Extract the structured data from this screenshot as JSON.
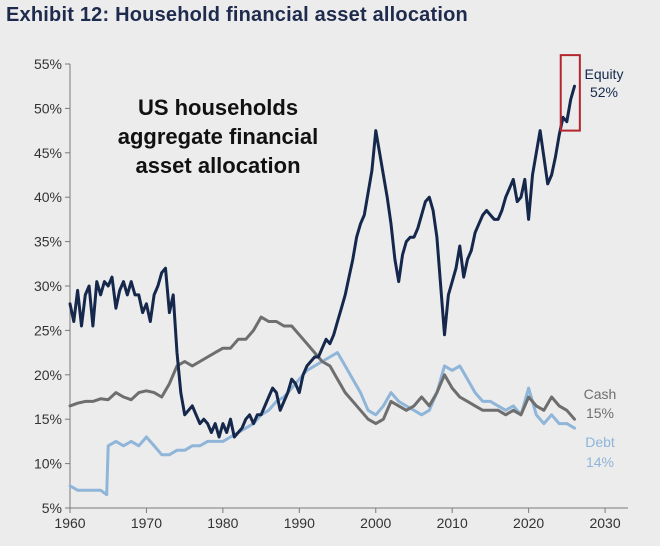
{
  "chart_data": {
    "type": "line",
    "title": "Exhibit 12: Household financial asset allocation",
    "inset_title": [
      "US households",
      "aggregate financial",
      "asset allocation"
    ],
    "xlabel": "",
    "ylabel": "",
    "xlim": [
      1960,
      2033
    ],
    "ylim": [
      5,
      55
    ],
    "x_ticks": [
      1960,
      1970,
      1980,
      1990,
      2000,
      2010,
      2020,
      2030
    ],
    "y_ticks": [
      5,
      10,
      15,
      20,
      25,
      30,
      35,
      40,
      45,
      50,
      55
    ],
    "y_tick_labels": [
      "5%",
      "10%",
      "15%",
      "20%",
      "25%",
      "30%",
      "35%",
      "40%",
      "45%",
      "50%",
      "55%"
    ],
    "grid": false,
    "highlight_box": {
      "x_range": [
        2024.2,
        2026.7
      ],
      "y_range": [
        47.5,
        56
      ],
      "color": "#b3262d"
    },
    "series": [
      {
        "name": "Equity",
        "end_label": "52%",
        "color": "#15284c",
        "points": [
          [
            1960,
            28
          ],
          [
            1960.5,
            26
          ],
          [
            1961,
            29.5
          ],
          [
            1961.5,
            25.5
          ],
          [
            1962,
            29
          ],
          [
            1962.5,
            30
          ],
          [
            1963,
            25.5
          ],
          [
            1963.5,
            30.5
          ],
          [
            1964,
            29
          ],
          [
            1964.5,
            30.5
          ],
          [
            1965,
            30
          ],
          [
            1965.5,
            31
          ],
          [
            1966,
            27.5
          ],
          [
            1966.5,
            29.5
          ],
          [
            1967,
            30.5
          ],
          [
            1967.5,
            29
          ],
          [
            1968,
            30.5
          ],
          [
            1968.5,
            29
          ],
          [
            1969,
            29
          ],
          [
            1969.5,
            27
          ],
          [
            1970,
            28
          ],
          [
            1970.5,
            26
          ],
          [
            1971,
            29
          ],
          [
            1971.5,
            30
          ],
          [
            1972,
            31.5
          ],
          [
            1972.5,
            32
          ],
          [
            1973,
            27
          ],
          [
            1973.5,
            29
          ],
          [
            1974,
            22.5
          ],
          [
            1974.5,
            18
          ],
          [
            1975,
            15.5
          ],
          [
            1975.5,
            16
          ],
          [
            1976,
            16.5
          ],
          [
            1976.5,
            15.5
          ],
          [
            1977,
            14.5
          ],
          [
            1977.5,
            15
          ],
          [
            1978,
            14.5
          ],
          [
            1978.5,
            13.5
          ],
          [
            1979,
            14.5
          ],
          [
            1979.5,
            13
          ],
          [
            1980,
            14.5
          ],
          [
            1980.5,
            13.5
          ],
          [
            1981,
            15
          ],
          [
            1981.5,
            13
          ],
          [
            1982,
            13.5
          ],
          [
            1982.5,
            14
          ],
          [
            1983,
            15
          ],
          [
            1983.5,
            15.5
          ],
          [
            1984,
            14.5
          ],
          [
            1984.5,
            15.5
          ],
          [
            1985,
            15.5
          ],
          [
            1985.5,
            16.5
          ],
          [
            1986,
            17.5
          ],
          [
            1986.5,
            18.5
          ],
          [
            1987,
            18
          ],
          [
            1987.5,
            16
          ],
          [
            1988,
            17
          ],
          [
            1988.5,
            18
          ],
          [
            1989,
            19.5
          ],
          [
            1989.5,
            19
          ],
          [
            1990,
            18
          ],
          [
            1990.5,
            20
          ],
          [
            1991,
            21
          ],
          [
            1991.5,
            21.5
          ],
          [
            1992,
            22
          ],
          [
            1992.5,
            22
          ],
          [
            1993,
            23
          ],
          [
            1993.5,
            24
          ],
          [
            1994,
            23.5
          ],
          [
            1994.5,
            24.5
          ],
          [
            1995,
            26
          ],
          [
            1995.5,
            27.5
          ],
          [
            1996,
            29
          ],
          [
            1996.5,
            31
          ],
          [
            1997,
            33
          ],
          [
            1997.5,
            35.5
          ],
          [
            1998,
            37
          ],
          [
            1998.5,
            38
          ],
          [
            1999,
            40.5
          ],
          [
            1999.5,
            43
          ],
          [
            2000,
            47.5
          ],
          [
            2000.5,
            45
          ],
          [
            2001,
            42.5
          ],
          [
            2001.5,
            40
          ],
          [
            2002,
            37
          ],
          [
            2002.5,
            33
          ],
          [
            2003,
            30.5
          ],
          [
            2003.5,
            33.5
          ],
          [
            2004,
            35
          ],
          [
            2004.5,
            35.5
          ],
          [
            2005,
            35.5
          ],
          [
            2005.5,
            36.5
          ],
          [
            2006,
            38
          ],
          [
            2006.5,
            39.5
          ],
          [
            2007,
            40
          ],
          [
            2007.5,
            38.5
          ],
          [
            2008,
            35.5
          ],
          [
            2008.5,
            30
          ],
          [
            2009,
            24.5
          ],
          [
            2009.5,
            29
          ],
          [
            2010,
            30.5
          ],
          [
            2010.5,
            32
          ],
          [
            2011,
            34.5
          ],
          [
            2011.5,
            31
          ],
          [
            2012,
            33
          ],
          [
            2012.5,
            34
          ],
          [
            2013,
            36
          ],
          [
            2013.5,
            37
          ],
          [
            2014,
            38
          ],
          [
            2014.5,
            38.5
          ],
          [
            2015,
            38
          ],
          [
            2015.5,
            37.5
          ],
          [
            2016,
            37.5
          ],
          [
            2016.5,
            38.5
          ],
          [
            2017,
            40
          ],
          [
            2017.5,
            41
          ],
          [
            2018,
            42
          ],
          [
            2018.5,
            39.5
          ],
          [
            2019,
            40
          ],
          [
            2019.5,
            42
          ],
          [
            2020,
            37.5
          ],
          [
            2020.5,
            42.5
          ],
          [
            2021,
            45
          ],
          [
            2021.5,
            47.5
          ],
          [
            2022,
            44.5
          ],
          [
            2022.5,
            41.5
          ],
          [
            2023,
            42.5
          ],
          [
            2023.5,
            44.5
          ],
          [
            2024,
            47
          ],
          [
            2024.5,
            49
          ],
          [
            2025,
            48.5
          ],
          [
            2025.5,
            51
          ],
          [
            2026,
            52.5
          ]
        ]
      },
      {
        "name": "Cash",
        "end_label": "15%",
        "color": "#6e6e6e",
        "points": [
          [
            1960,
            16.5
          ],
          [
            1961,
            16.8
          ],
          [
            1962,
            17
          ],
          [
            1963,
            17
          ],
          [
            1964,
            17.3
          ],
          [
            1965,
            17.2
          ],
          [
            1966,
            18
          ],
          [
            1967,
            17.5
          ],
          [
            1968,
            17.2
          ],
          [
            1969,
            18
          ],
          [
            1970,
            18.2
          ],
          [
            1971,
            18
          ],
          [
            1972,
            17.5
          ],
          [
            1973,
            19
          ],
          [
            1974,
            21
          ],
          [
            1975,
            21.5
          ],
          [
            1976,
            21
          ],
          [
            1977,
            21.5
          ],
          [
            1978,
            22
          ],
          [
            1979,
            22.5
          ],
          [
            1980,
            23
          ],
          [
            1981,
            23
          ],
          [
            1982,
            24
          ],
          [
            1983,
            24
          ],
          [
            1984,
            25
          ],
          [
            1985,
            26.5
          ],
          [
            1986,
            26
          ],
          [
            1987,
            26
          ],
          [
            1988,
            25.5
          ],
          [
            1989,
            25.5
          ],
          [
            1990,
            24.5
          ],
          [
            1991,
            23.5
          ],
          [
            1992,
            22.5
          ],
          [
            1993,
            21.5
          ],
          [
            1994,
            21
          ],
          [
            1995,
            19.5
          ],
          [
            1996,
            18
          ],
          [
            1997,
            17
          ],
          [
            1998,
            16
          ],
          [
            1999,
            15
          ],
          [
            2000,
            14.5
          ],
          [
            2001,
            15
          ],
          [
            2002,
            17
          ],
          [
            2003,
            16.5
          ],
          [
            2004,
            16
          ],
          [
            2005,
            16.5
          ],
          [
            2006,
            17.5
          ],
          [
            2007,
            16.5
          ],
          [
            2008,
            18
          ],
          [
            2009,
            20
          ],
          [
            2010,
            18.5
          ],
          [
            2011,
            17.5
          ],
          [
            2012,
            17
          ],
          [
            2013,
            16.5
          ],
          [
            2014,
            16
          ],
          [
            2015,
            16
          ],
          [
            2016,
            16
          ],
          [
            2017,
            15.5
          ],
          [
            2018,
            16
          ],
          [
            2019,
            15.5
          ],
          [
            2020,
            17.5
          ],
          [
            2021,
            16.5
          ],
          [
            2022,
            16
          ],
          [
            2023,
            17.5
          ],
          [
            2024,
            16.5
          ],
          [
            2025,
            16
          ],
          [
            2026,
            15
          ]
        ]
      },
      {
        "name": "Debt",
        "end_label": "14%",
        "color": "#8fb5d9",
        "points": [
          [
            1960,
            7.5
          ],
          [
            1961,
            7
          ],
          [
            1962,
            7
          ],
          [
            1963,
            7
          ],
          [
            1964,
            7
          ],
          [
            1964.8,
            6.5
          ],
          [
            1965,
            12
          ],
          [
            1966,
            12.5
          ],
          [
            1967,
            12
          ],
          [
            1968,
            12.5
          ],
          [
            1969,
            12
          ],
          [
            1970,
            13
          ],
          [
            1971,
            12
          ],
          [
            1972,
            11
          ],
          [
            1973,
            11
          ],
          [
            1974,
            11.5
          ],
          [
            1975,
            11.5
          ],
          [
            1976,
            12
          ],
          [
            1977,
            12
          ],
          [
            1978,
            12.5
          ],
          [
            1979,
            12.5
          ],
          [
            1980,
            12.5
          ],
          [
            1981,
            13
          ],
          [
            1982,
            13.5
          ],
          [
            1983,
            14
          ],
          [
            1984,
            14.5
          ],
          [
            1985,
            15.5
          ],
          [
            1986,
            16
          ],
          [
            1987,
            17
          ],
          [
            1988,
            17.5
          ],
          [
            1989,
            18.5
          ],
          [
            1990,
            19.5
          ],
          [
            1991,
            20.5
          ],
          [
            1992,
            21
          ],
          [
            1993,
            21.5
          ],
          [
            1994,
            22
          ],
          [
            1995,
            22.5
          ],
          [
            1996,
            21
          ],
          [
            1997,
            19.5
          ],
          [
            1998,
            18
          ],
          [
            1999,
            16
          ],
          [
            2000,
            15.5
          ],
          [
            2001,
            16.5
          ],
          [
            2002,
            18
          ],
          [
            2003,
            17
          ],
          [
            2004,
            16.5
          ],
          [
            2005,
            16
          ],
          [
            2006,
            15.5
          ],
          [
            2007,
            16
          ],
          [
            2008,
            18
          ],
          [
            2009,
            21
          ],
          [
            2010,
            20.5
          ],
          [
            2011,
            21
          ],
          [
            2012,
            19.5
          ],
          [
            2013,
            18
          ],
          [
            2014,
            17
          ],
          [
            2015,
            17
          ],
          [
            2016,
            16.5
          ],
          [
            2017,
            16
          ],
          [
            2018,
            16.5
          ],
          [
            2019,
            15.5
          ],
          [
            2020,
            18.5
          ],
          [
            2021,
            15.5
          ],
          [
            2022,
            14.5
          ],
          [
            2023,
            15.5
          ],
          [
            2024,
            14.5
          ],
          [
            2025,
            14.5
          ],
          [
            2026,
            14
          ]
        ]
      }
    ]
  }
}
